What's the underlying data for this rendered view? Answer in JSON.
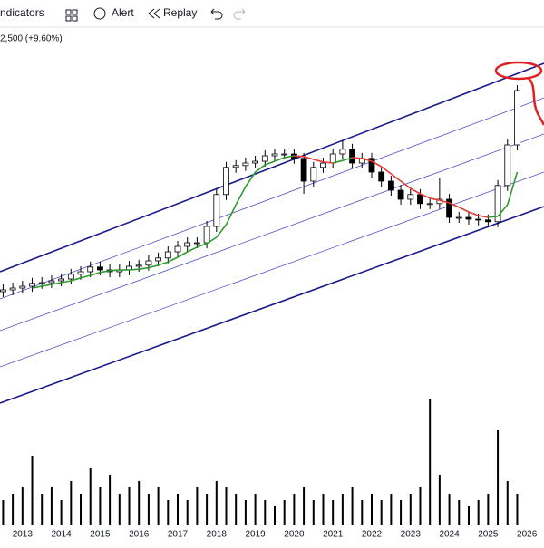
{
  "toolbar": {
    "indicators": "ndicators",
    "alert": "Alert",
    "replay": "Replay"
  },
  "legend_text": "2,500 (+9.60%)",
  "chart_data": {
    "type": "candlestick",
    "x": [
      2012.5,
      2012.75,
      2013,
      2013.25,
      2013.5,
      2013.75,
      2014,
      2014.25,
      2014.5,
      2014.75,
      2015,
      2015.25,
      2015.5,
      2015.75,
      2016,
      2016.25,
      2016.5,
      2016.75,
      2017,
      2017.25,
      2017.5,
      2017.75,
      2018,
      2018.25,
      2018.5,
      2018.75,
      2019,
      2019.25,
      2019.5,
      2019.75,
      2020,
      2020.25,
      2020.5,
      2020.75,
      2021,
      2021.25,
      2021.5,
      2021.75,
      2022,
      2022.25,
      2022.5,
      2022.75,
      2023,
      2023.25,
      2023.5,
      2023.75,
      2024,
      2024.25,
      2024.5,
      2024.75,
      2025,
      2025.25,
      2025.5,
      2025.75
    ],
    "open": [
      32,
      32.5,
      33,
      33.5,
      34.3,
      34.5,
      35,
      35.5,
      36.8,
      37.5,
      38.8,
      38,
      37.5,
      38,
      39,
      39.3,
      40.5,
      41.3,
      43,
      44.5,
      45.5,
      45.5,
      50,
      58.8,
      66.3,
      66.8,
      67.5,
      68,
      69.5,
      70,
      70,
      68.8,
      62.5,
      66.3,
      67.5,
      70,
      71.3,
      67.5,
      68.8,
      65,
      62.5,
      60,
      57.5,
      58.8,
      56.3,
      56.3,
      57.5,
      52.5,
      52.5,
      52,
      51.8,
      51.3,
      61.3,
      72.5
    ],
    "high": [
      34,
      34.5,
      35,
      35.8,
      36,
      36.5,
      37,
      38.3,
      39,
      40.3,
      40.3,
      39.5,
      39.5,
      40.5,
      40.8,
      42,
      42.8,
      44.5,
      46,
      47,
      47,
      51.5,
      60.3,
      67.8,
      68.3,
      69,
      69.5,
      71,
      71.5,
      71.5,
      71.5,
      70.3,
      67.8,
      69,
      71.5,
      73.8,
      72.8,
      70.3,
      70.3,
      66.5,
      64,
      61.5,
      60.3,
      60.3,
      57.8,
      63.5,
      59,
      54,
      54,
      53.5,
      53.3,
      62.8,
      74,
      89
    ],
    "low": [
      30.5,
      31,
      31.5,
      32,
      32.8,
      33,
      33.5,
      34,
      35.3,
      36,
      36.5,
      36,
      36,
      36.5,
      37.5,
      37.8,
      39,
      39.8,
      41.5,
      43,
      44,
      44,
      48.5,
      57.3,
      64.8,
      65.3,
      66,
      66.5,
      68,
      68.5,
      67.3,
      59,
      61,
      64.8,
      66,
      68.5,
      66,
      66,
      63.5,
      61,
      58.5,
      56,
      56,
      54.8,
      54.8,
      54.8,
      51,
      51,
      50.5,
      50.3,
      49.8,
      49.8,
      59.8,
      71
    ],
    "close": [
      32.5,
      33,
      33.5,
      34.3,
      34.5,
      35,
      35.5,
      36.8,
      37.5,
      38.8,
      38,
      37.5,
      38,
      39,
      39.3,
      40.5,
      41.3,
      43,
      44.5,
      45.5,
      45.5,
      50,
      58.8,
      66.3,
      66.8,
      67.5,
      68,
      69.5,
      70,
      70,
      68.8,
      62.5,
      66.3,
      67.5,
      70,
      71.3,
      67.5,
      68.8,
      65,
      62.5,
      60,
      57.5,
      58.8,
      56.3,
      56.3,
      57.5,
      52.5,
      52.5,
      52,
      51.8,
      51.3,
      61.3,
      72.5,
      87.5
    ],
    "ma": [
      null,
      null,
      null,
      33,
      33.5,
      34,
      34.5,
      35,
      35.8,
      36.5,
      37.3,
      37.8,
      38,
      38,
      38.2,
      38.6,
      39.3,
      40.2,
      41.5,
      43,
      44.3,
      45.3,
      47,
      50.5,
      56,
      61,
      65,
      67,
      68,
      69,
      69.5,
      69.3,
      68.5,
      67.8,
      67.5,
      68.2,
      69,
      68.8,
      68,
      66.5,
      64.5,
      62.5,
      60.5,
      59,
      57.8,
      57.2,
      56.5,
      55.3,
      54,
      53,
      52.5,
      52.8,
      56,
      65
    ],
    "volume": [
      20,
      25,
      30,
      55,
      25,
      30,
      20,
      35,
      25,
      45,
      30,
      40,
      25,
      30,
      35,
      25,
      30,
      20,
      25,
      20,
      30,
      25,
      35,
      30,
      25,
      20,
      25,
      20,
      15,
      20,
      25,
      30,
      20,
      25,
      20,
      25,
      30,
      20,
      25,
      20,
      25,
      20,
      25,
      30,
      100,
      40,
      25,
      20,
      15,
      20,
      25,
      75,
      35,
      25
    ],
    "xlim": [
      2012.42,
      2026.44
    ],
    "xticks": [
      2013,
      2014,
      2015,
      2016,
      2017,
      2018,
      2019,
      2020,
      2021,
      2022,
      2023,
      2024,
      2025,
      2026
    ],
    "ylim": [
      0,
      100
    ],
    "vlim": [
      0,
      100
    ],
    "up_color": "#ffffff",
    "down_color": "#000000",
    "ma_up_color": "#2e9b2e",
    "ma_down_color": "#e53935",
    "volume_color": "#000000"
  }
}
